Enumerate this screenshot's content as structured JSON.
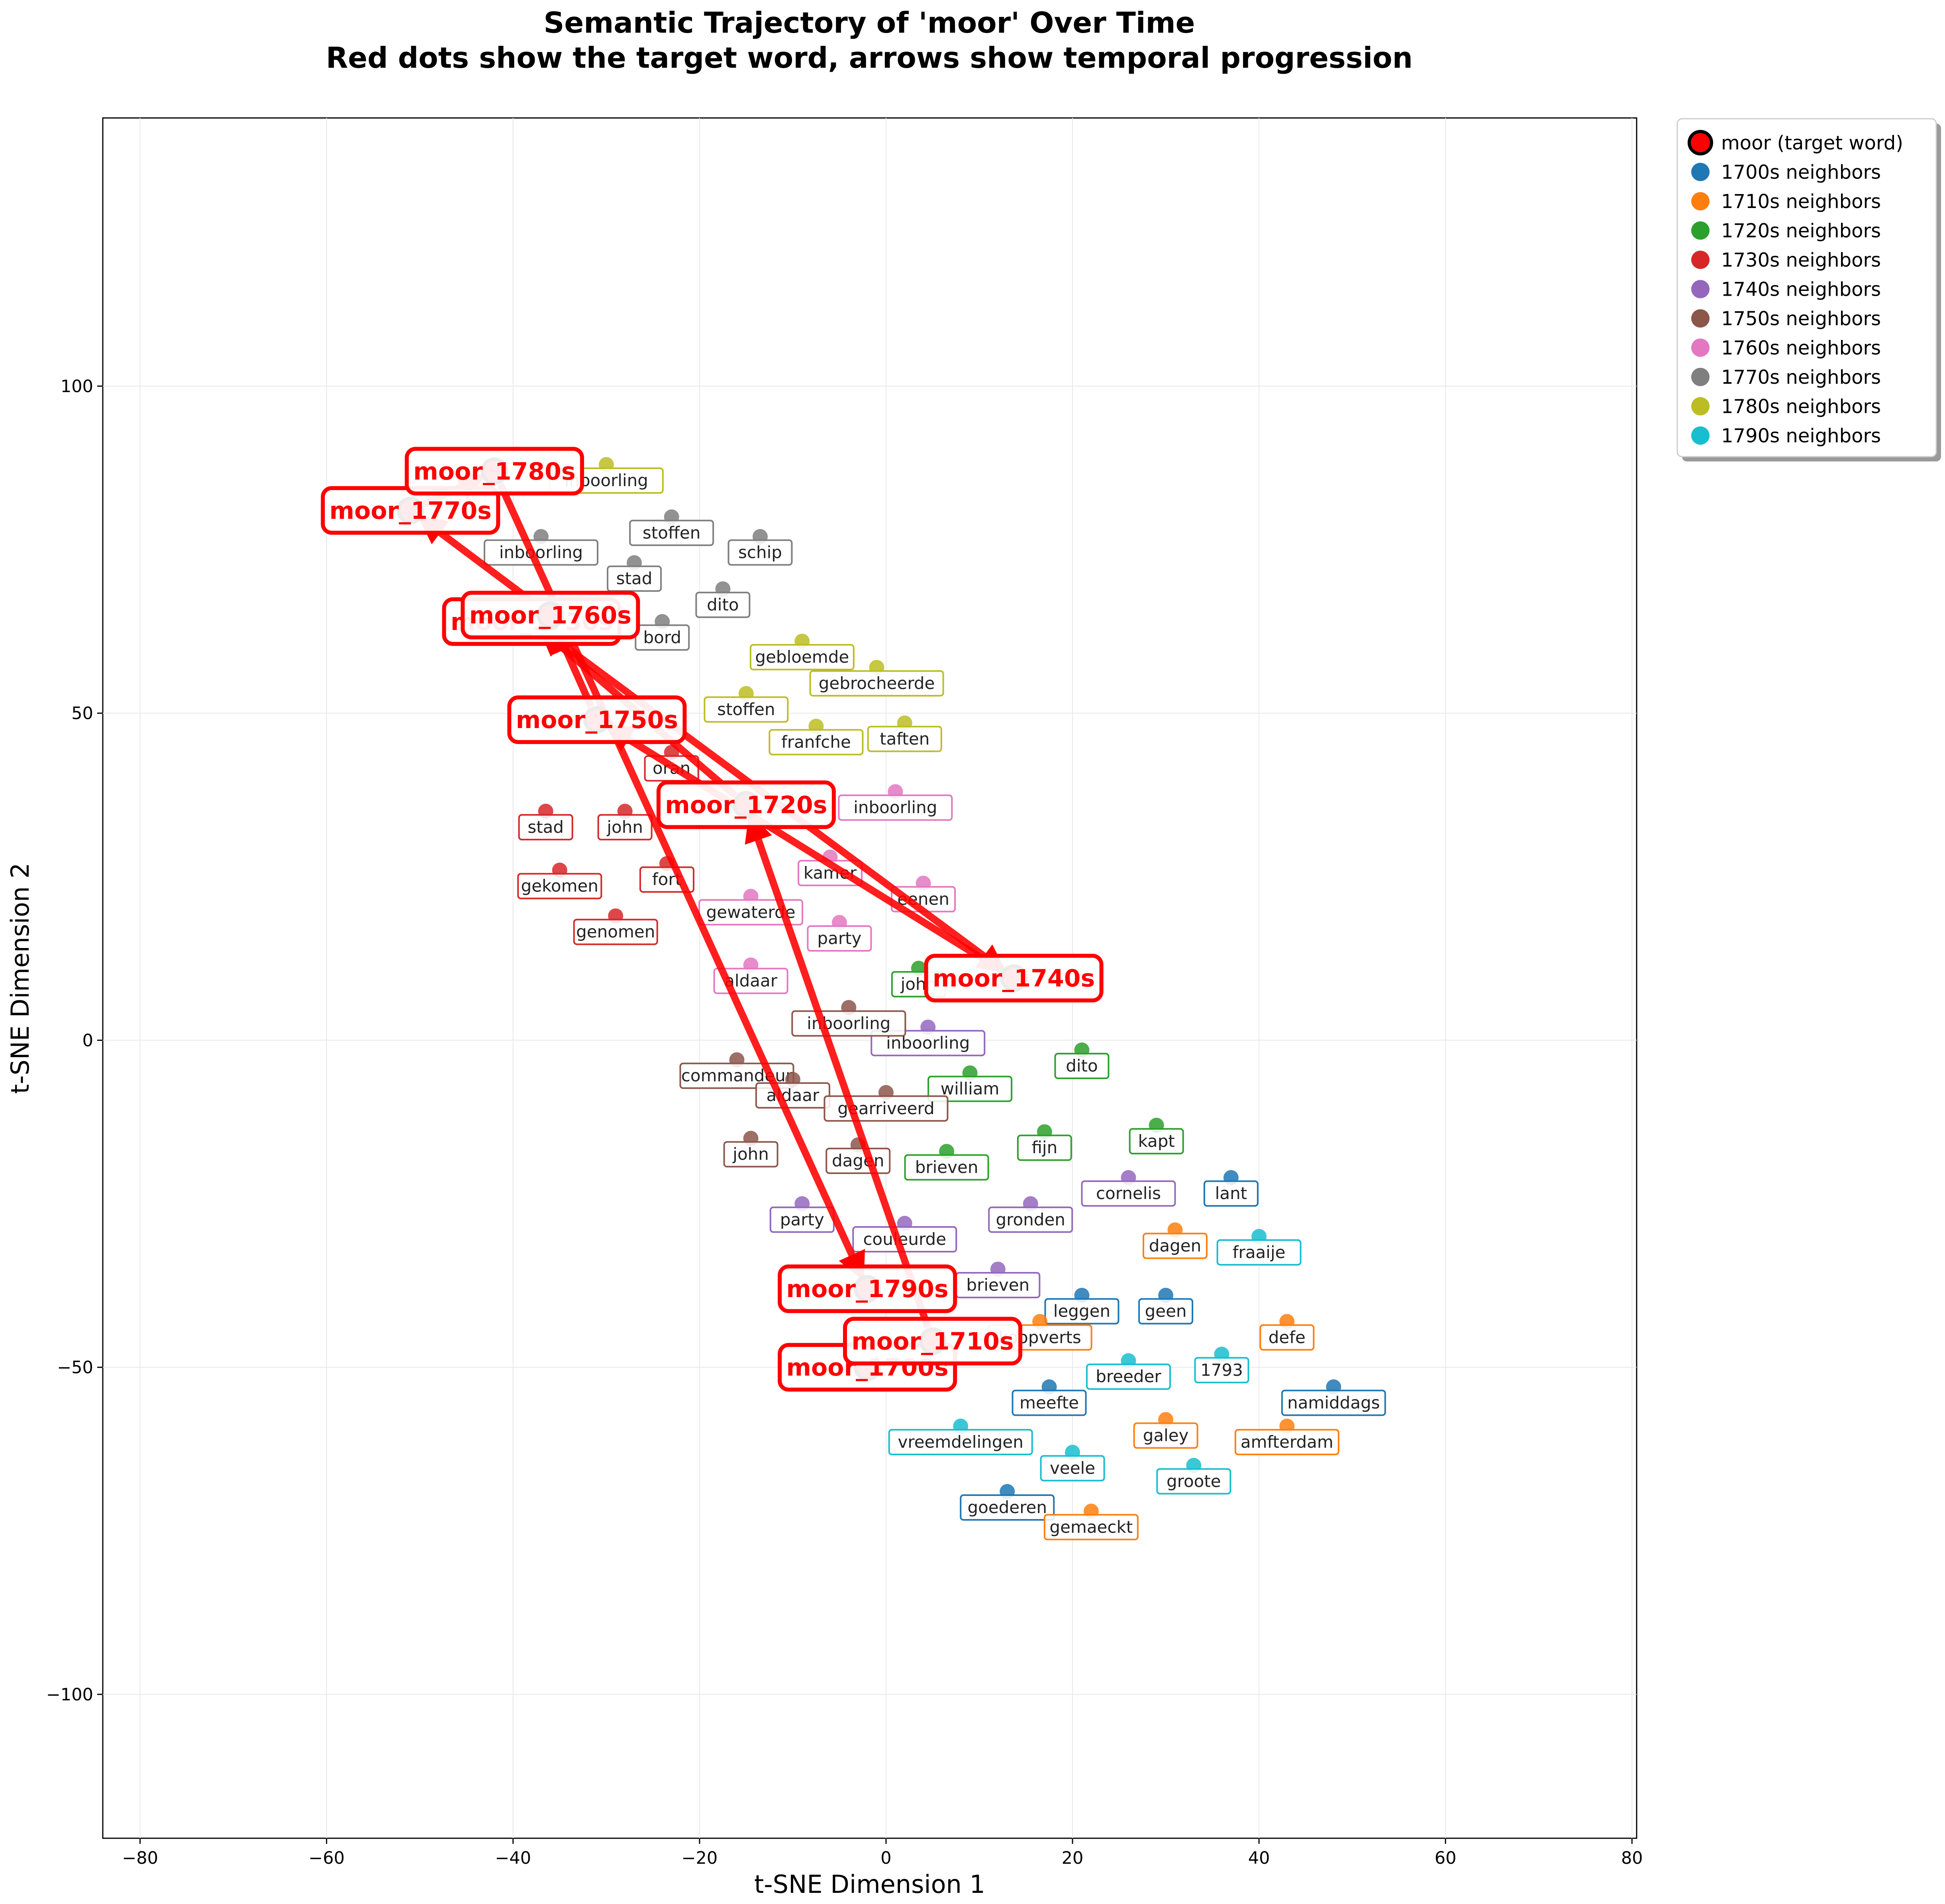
{
  "chart_data": {
    "type": "scatter",
    "title": "Semantic Trajectory of 'moor' Over Time",
    "subtitle": "Red dots show the target word, arrows show temporal progression",
    "xlabel": "t-SNE Dimension 1",
    "ylabel": "t-SNE Dimension 2",
    "xlim": [
      -84,
      80.5
    ],
    "ylim": [
      -122,
      141
    ],
    "xticks": [
      -80,
      -60,
      -40,
      -20,
      0,
      20,
      40,
      60,
      80
    ],
    "yticks": [
      -100,
      -50,
      0,
      50,
      100
    ],
    "grid": true,
    "legend_position": "top-right (outside plot)",
    "target": {
      "legend": "moor (target word)",
      "color": "#ff0000",
      "points": [
        {
          "label": "moor_1700s",
          "x": -2,
          "y": -50
        },
        {
          "label": "moor_1710s",
          "x": 5,
          "y": -46
        },
        {
          "label": "moor_1720s",
          "x": -15,
          "y": 36
        },
        {
          "label": "moor_1730s",
          "x": -38,
          "y": 64
        },
        {
          "label": "moor_1740s",
          "x": 13.7,
          "y": 9.5
        },
        {
          "label": "moor_1750s",
          "x": -31,
          "y": 49
        },
        {
          "label": "moor_1760s",
          "x": -36,
          "y": 65
        },
        {
          "label": "moor_1770s",
          "x": -51,
          "y": 81
        },
        {
          "label": "moor_1780s",
          "x": -42,
          "y": 87
        },
        {
          "label": "moor_1790s",
          "x": -2,
          "y": -38
        }
      ],
      "trajectory_order": [
        "moor_1700s",
        "moor_1710s",
        "moor_1720s",
        "moor_1730s",
        "moor_1740s",
        "moor_1750s",
        "moor_1760s",
        "moor_1770s",
        "moor_1780s",
        "moor_1790s"
      ]
    },
    "series": [
      {
        "name": "1700s neighbors",
        "color": "#1f77b4",
        "points": [
          {
            "word": "lant",
            "x": 37,
            "y": -21
          },
          {
            "word": "leggen",
            "x": 21,
            "y": -39
          },
          {
            "word": "geen",
            "x": 30,
            "y": -39
          },
          {
            "word": "meefte",
            "x": 17.5,
            "y": -53
          },
          {
            "word": "namiddags",
            "x": 48,
            "y": -53
          },
          {
            "word": "goederen",
            "x": 13,
            "y": -69
          }
        ]
      },
      {
        "name": "1710s neighbors",
        "color": "#ff7f0e",
        "points": [
          {
            "word": "dagen",
            "x": 31,
            "y": -29
          },
          {
            "word": "defe",
            "x": 43,
            "y": -43
          },
          {
            "word": "koopverts",
            "x": 16.5,
            "y": -43
          },
          {
            "word": "galey",
            "x": 30,
            "y": -58
          },
          {
            "word": "amfterdam",
            "x": 43,
            "y": -59
          },
          {
            "word": "gemaeckt",
            "x": 22,
            "y": -72
          }
        ]
      },
      {
        "name": "1720s neighbors",
        "color": "#2ca02c",
        "points": [
          {
            "word": "john",
            "x": 3.5,
            "y": 11
          },
          {
            "word": "dito",
            "x": 21,
            "y": -1.5
          },
          {
            "word": "william",
            "x": 9,
            "y": -5
          },
          {
            "word": "kapt",
            "x": 29,
            "y": -13
          },
          {
            "word": "fijn",
            "x": 17,
            "y": -14
          },
          {
            "word": "brieven",
            "x": 6.5,
            "y": -17
          }
        ]
      },
      {
        "name": "1730s neighbors",
        "color": "#d62728",
        "points": [
          {
            "word": "stad",
            "x": -36.5,
            "y": 35
          },
          {
            "word": "john",
            "x": -28,
            "y": 35
          },
          {
            "word": "gekomen",
            "x": -35,
            "y": 26
          },
          {
            "word": "fort",
            "x": -23.5,
            "y": 27
          },
          {
            "word": "genomen",
            "x": -29,
            "y": 19
          },
          {
            "word": "oran",
            "x": -23,
            "y": 44
          }
        ]
      },
      {
        "name": "1740s neighbors",
        "color": "#9467bd",
        "points": [
          {
            "word": "inboorling",
            "x": 4.5,
            "y": 2
          },
          {
            "word": "cornelis",
            "x": 26,
            "y": -21
          },
          {
            "word": "gronden",
            "x": 15.5,
            "y": -25
          },
          {
            "word": "party",
            "x": -9,
            "y": -25
          },
          {
            "word": "couleurde",
            "x": 2,
            "y": -28
          },
          {
            "word": "brieven",
            "x": 12,
            "y": -35
          }
        ]
      },
      {
        "name": "1750s neighbors",
        "color": "#8c564b",
        "points": [
          {
            "word": "inboorling",
            "x": -4,
            "y": 5
          },
          {
            "word": "commandeur",
            "x": -16,
            "y": -3
          },
          {
            "word": "aldaar",
            "x": -10,
            "y": -6
          },
          {
            "word": "gearriveerd",
            "x": 0,
            "y": -8
          },
          {
            "word": "john",
            "x": -14.5,
            "y": -15
          },
          {
            "word": "dagen",
            "x": -3,
            "y": -16
          }
        ]
      },
      {
        "name": "1760s neighbors",
        "color": "#e377c2",
        "points": [
          {
            "word": "inboorling",
            "x": 1,
            "y": 38
          },
          {
            "word": "kamer",
            "x": -6,
            "y": 28
          },
          {
            "word": "eenen",
            "x": 4,
            "y": 24
          },
          {
            "word": "gewaterde",
            "x": -14.5,
            "y": 22
          },
          {
            "word": "party",
            "x": -5,
            "y": 18
          },
          {
            "word": "aldaar",
            "x": -14.5,
            "y": 11.5
          }
        ]
      },
      {
        "name": "1770s neighbors",
        "color": "#7f7f7f",
        "points": [
          {
            "word": "stoffen",
            "x": -23,
            "y": 80
          },
          {
            "word": "schip",
            "x": -13.5,
            "y": 77
          },
          {
            "word": "inboorling",
            "x": -37,
            "y": 77
          },
          {
            "word": "stad",
            "x": -27,
            "y": 73
          },
          {
            "word": "dito",
            "x": -17.5,
            "y": 69
          },
          {
            "word": "bord",
            "x": -24,
            "y": 64
          }
        ]
      },
      {
        "name": "1780s neighbors",
        "color": "#bcbd22",
        "points": [
          {
            "word": "inboorling",
            "x": -30,
            "y": 88
          },
          {
            "word": "gebloemde",
            "x": -9,
            "y": 61
          },
          {
            "word": "gebrocheerde",
            "x": -1,
            "y": 57
          },
          {
            "word": "stoffen",
            "x": -15,
            "y": 53
          },
          {
            "word": "franfche",
            "x": -7.5,
            "y": 48
          },
          {
            "word": "taften",
            "x": 2,
            "y": 48.5
          }
        ]
      },
      {
        "name": "1790s neighbors",
        "color": "#17becf",
        "points": [
          {
            "word": "fraaije",
            "x": 40,
            "y": -30
          },
          {
            "word": "breeder",
            "x": 26,
            "y": -49
          },
          {
            "word": "1793",
            "x": 36,
            "y": -48
          },
          {
            "word": "vreemdelingen",
            "x": 8,
            "y": -59
          },
          {
            "word": "veele",
            "x": 20,
            "y": -63
          },
          {
            "word": "groote",
            "x": 33,
            "y": -65
          }
        ]
      }
    ]
  }
}
